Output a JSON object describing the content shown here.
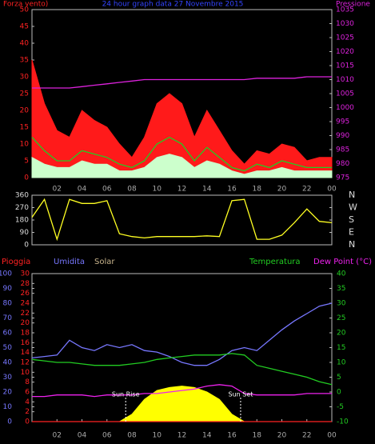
{
  "chart_data": [
    {
      "type": "line",
      "title": "24 hour graph data  27 Novembre 2015",
      "y_label": "Forza vento)",
      "y2_label": "Pressione",
      "x": [
        0,
        1,
        2,
        3,
        4,
        5,
        6,
        7,
        8,
        9,
        10,
        11,
        12,
        13,
        14,
        15,
        16,
        17,
        18,
        19,
        20,
        21,
        22,
        23,
        24
      ],
      "xlim": [
        0,
        24
      ],
      "xticks": [
        {
          "value": 2,
          "label": "02"
        },
        {
          "value": 4,
          "label": "04"
        },
        {
          "value": 6,
          "label": "06"
        },
        {
          "value": 8,
          "label": "08"
        },
        10,
        12,
        14,
        16,
        18,
        20,
        22,
        {
          "value": 24,
          "label": "00"
        }
      ],
      "ylim": [
        0,
        50
      ],
      "yticks": [
        0,
        5,
        10,
        15,
        20,
        25,
        30,
        35,
        40,
        45,
        50
      ],
      "y2lim": [
        975,
        1035
      ],
      "y2ticks": [
        975,
        980,
        985,
        990,
        995,
        1000,
        1005,
        1010,
        1015,
        1020,
        1025,
        1030,
        1035
      ],
      "series": [
        {
          "color": "#ff1a1a",
          "style": "area",
          "values": [
            35,
            22,
            14,
            12,
            20,
            17,
            15,
            10,
            6,
            12,
            22,
            25,
            22,
            12,
            20,
            14,
            8,
            4,
            8,
            7,
            10,
            9,
            5,
            6,
            6
          ]
        },
        {
          "color": "#ccffcc",
          "style": "area",
          "values": [
            6,
            4,
            3,
            3,
            5,
            4,
            4,
            2,
            2,
            3,
            6,
            7,
            6,
            3,
            5,
            4,
            2,
            1,
            2,
            2,
            3,
            2,
            2,
            2,
            2
          ]
        },
        {
          "color": "#22cc22",
          "style": "line",
          "values": [
            12,
            8,
            5,
            5,
            8,
            7,
            6,
            4,
            3,
            5,
            10,
            12,
            10,
            5,
            9,
            6,
            3,
            2,
            4,
            3,
            5,
            4,
            3,
            3,
            3
          ]
        },
        {
          "color": "#dd22dd",
          "style": "line",
          "axis": "y2",
          "values": [
            1007,
            1007,
            1007,
            1007,
            1007.5,
            1008,
            1008.5,
            1009,
            1009.5,
            1010,
            1010,
            1010,
            1010,
            1010,
            1010,
            1010,
            1010,
            1010,
            1010.5,
            1010.5,
            1010.5,
            1010.5,
            1011,
            1011,
            1011
          ]
        }
      ]
    },
    {
      "type": "line",
      "x": [
        0,
        1,
        2,
        3,
        4,
        5,
        6,
        7,
        8,
        9,
        10,
        11,
        12,
        13,
        14,
        15,
        16,
        17,
        18,
        19,
        20,
        21,
        22,
        23,
        24
      ],
      "xlim": [
        0,
        24
      ],
      "ylim": [
        0,
        360
      ],
      "yticks": [
        0,
        90,
        180,
        270,
        360
      ],
      "y2lim": [
        0,
        360
      ],
      "y2ticks": [
        {
          "value": 360,
          "label": "N"
        },
        {
          "value": 270,
          "label": "W"
        },
        {
          "value": 180,
          "label": "S"
        },
        {
          "value": 90,
          "label": "E"
        },
        {
          "value": 0,
          "label": "N"
        }
      ],
      "series": [
        {
          "color": "#ffff22",
          "style": "line",
          "values": [
            200,
            330,
            40,
            330,
            300,
            300,
            320,
            80,
            60,
            50,
            60,
            60,
            60,
            60,
            65,
            60,
            320,
            330,
            40,
            40,
            70,
            160,
            260,
            170,
            160
          ]
        }
      ]
    },
    {
      "type": "line",
      "x": [
        0,
        1,
        2,
        3,
        4,
        5,
        6,
        7,
        8,
        9,
        10,
        11,
        12,
        13,
        14,
        15,
        16,
        17,
        18,
        19,
        20,
        21,
        22,
        23,
        24
      ],
      "xlim": [
        0,
        24
      ],
      "xticks": [
        {
          "value": 2,
          "label": "02"
        },
        {
          "value": 4,
          "label": "04"
        },
        {
          "value": 6,
          "label": "06"
        },
        {
          "value": 8,
          "label": "08"
        },
        10,
        12,
        14,
        16,
        18,
        20,
        22,
        {
          "value": 24,
          "label": "00"
        }
      ],
      "ylim": [
        0,
        100
      ],
      "yticks": [
        0,
        10,
        20,
        30,
        40,
        50,
        60,
        70,
        80,
        90,
        100
      ],
      "y3lim": [
        0,
        30
      ],
      "y3ticks": [
        0,
        2,
        4,
        6,
        8,
        10,
        12,
        14,
        16,
        18,
        20,
        22,
        24,
        26,
        28,
        30
      ],
      "y2lim": [
        -10,
        40
      ],
      "y2ticks": [
        -10,
        -5,
        0,
        5,
        10,
        15,
        20,
        25,
        30,
        35,
        40
      ],
      "annotations": [
        {
          "text": "Sun Rise",
          "x": 7.5
        },
        {
          "text": "Sun Set",
          "x": 16.7
        }
      ],
      "series": [
        {
          "name": "Solar",
          "color": "#ffff00",
          "style": "area",
          "values": [
            0,
            0,
            0,
            0,
            0,
            0,
            0,
            0,
            5,
            15,
            21,
            23,
            24,
            23,
            20,
            15,
            5,
            0,
            0,
            0,
            0,
            0,
            0,
            0,
            0
          ]
        },
        {
          "name": "Pioggia",
          "color": "#ff2222",
          "style": "line",
          "axis": "y3",
          "values": [
            0,
            0,
            0,
            0,
            0,
            0,
            0,
            0,
            0,
            0,
            0,
            0,
            0,
            0,
            0,
            0,
            0,
            0,
            0,
            0,
            0,
            0,
            0,
            0,
            0
          ]
        },
        {
          "name": "Umidita",
          "color": "#7777ff",
          "style": "line",
          "values": [
            43,
            44,
            45,
            55,
            50,
            48,
            52,
            50,
            52,
            48,
            47,
            44,
            40,
            38,
            38,
            42,
            48,
            50,
            48,
            55,
            62,
            68,
            73,
            78,
            80
          ]
        },
        {
          "name": "Temperatura",
          "color": "#22cc22",
          "style": "line",
          "axis": "y2",
          "values": [
            11,
            10.5,
            10,
            10,
            9.5,
            9,
            9,
            9,
            9.5,
            10,
            11,
            11.5,
            12,
            12.5,
            12.5,
            12.5,
            13,
            12.5,
            9,
            8,
            7,
            6,
            5,
            3.5,
            2.5
          ]
        },
        {
          "name": "Dew Point (°C)",
          "color": "#ee22ee",
          "style": "line",
          "axis": "y2",
          "values": [
            -1.5,
            -1.5,
            -1,
            -1,
            -1,
            -1.5,
            -1,
            -1,
            -1,
            -0.5,
            -0.5,
            0,
            0.5,
            1,
            2,
            2.5,
            2,
            -0.5,
            -1,
            -1,
            -1,
            -1,
            -0.5,
            -0.5,
            -0.5
          ]
        }
      ]
    }
  ]
}
